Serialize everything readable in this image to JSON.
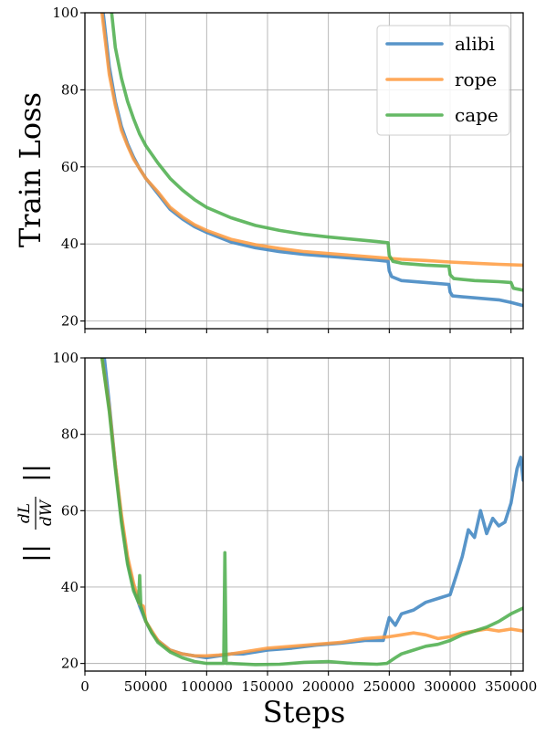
{
  "colors": {
    "alibi": "#3b83c0",
    "rope": "#ff9a3d",
    "cape": "#4aad4a"
  },
  "chart_data": [
    {
      "type": "line",
      "title": "",
      "xlabel": "",
      "ylabel": "Train Loss",
      "xlim": [
        0,
        360000
      ],
      "ylim": [
        18,
        100
      ],
      "xticks": [
        0,
        50000,
        100000,
        150000,
        200000,
        250000,
        300000,
        350000
      ],
      "yticks": [
        20,
        40,
        60,
        80,
        100
      ],
      "ytick_labels": [
        "20",
        "40",
        "60",
        "80",
        "100"
      ],
      "grid": true,
      "legend": "top-right",
      "series": [
        {
          "name": "alibi",
          "color": "#3b83c0",
          "x": [
            15000,
            20000,
            25000,
            30000,
            35000,
            40000,
            45000,
            50000,
            60000,
            70000,
            80000,
            90000,
            100000,
            120000,
            140000,
            160000,
            180000,
            200000,
            220000,
            240000,
            249000,
            250000,
            252000,
            260000,
            280000,
            299000,
            300000,
            302000,
            320000,
            340000,
            350000,
            360000
          ],
          "y": [
            100,
            86,
            77,
            70.5,
            66,
            62.5,
            59.5,
            57,
            53,
            49,
            46.5,
            44.5,
            43,
            40.5,
            39,
            38,
            37.3,
            36.8,
            36.3,
            35.8,
            35.5,
            33,
            31.5,
            30.5,
            30,
            29.5,
            27.5,
            26.5,
            26,
            25.5,
            24.8,
            24
          ]
        },
        {
          "name": "rope",
          "color": "#ff9a3d",
          "x": [
            14000,
            20000,
            25000,
            30000,
            35000,
            40000,
            45000,
            50000,
            60000,
            70000,
            80000,
            90000,
            100000,
            120000,
            140000,
            160000,
            180000,
            200000,
            220000,
            240000,
            260000,
            280000,
            300000,
            320000,
            340000,
            360000
          ],
          "y": [
            100,
            84,
            76,
            69.5,
            65.5,
            62,
            59.5,
            57,
            53.5,
            49.5,
            47,
            45,
            43.5,
            41.2,
            39.8,
            38.8,
            38,
            37.5,
            37,
            36.5,
            36,
            35.7,
            35.3,
            35,
            34.7,
            34.5
          ]
        },
        {
          "name": "cape",
          "color": "#4aad4a",
          "x": [
            22000,
            25000,
            30000,
            35000,
            40000,
            45000,
            50000,
            60000,
            70000,
            80000,
            90000,
            100000,
            120000,
            140000,
            160000,
            180000,
            200000,
            220000,
            240000,
            249000,
            250000,
            253000,
            260000,
            280000,
            299000,
            300000,
            303000,
            320000,
            340000,
            350000,
            352000,
            360000
          ],
          "y": [
            100,
            91,
            83,
            77,
            72.5,
            68.5,
            65.5,
            61,
            57,
            54,
            51.5,
            49.5,
            46.8,
            44.8,
            43.5,
            42.5,
            41.8,
            41.2,
            40.6,
            40.3,
            37,
            35.5,
            35,
            34.5,
            34.2,
            32,
            31,
            30.5,
            30.2,
            30,
            28.5,
            28
          ]
        }
      ]
    },
    {
      "type": "line",
      "title": "",
      "xlabel": "Steps",
      "ylabel": "||dL/dW||",
      "xlim": [
        0,
        360000
      ],
      "ylim": [
        18,
        100
      ],
      "xticks": [
        0,
        50000,
        100000,
        150000,
        200000,
        250000,
        300000,
        350000
      ],
      "xtick_labels": [
        "0",
        "50000",
        "100000",
        "150000",
        "200000",
        "250000",
        "300000",
        "350000"
      ],
      "yticks": [
        20,
        40,
        60,
        80,
        100
      ],
      "ytick_labels": [
        "20",
        "40",
        "60",
        "80",
        "100"
      ],
      "grid": true,
      "series": [
        {
          "name": "alibi",
          "color": "#3b83c0",
          "x": [
            16000,
            20000,
            25000,
            30000,
            35000,
            40000,
            45000,
            50000,
            55000,
            60000,
            70000,
            80000,
            90000,
            100000,
            110000,
            120000,
            130000,
            140000,
            150000,
            170000,
            190000,
            210000,
            230000,
            245000,
            250000,
            255000,
            260000,
            270000,
            280000,
            290000,
            300000,
            305000,
            310000,
            315000,
            320000,
            325000,
            330000,
            335000,
            340000,
            345000,
            350000,
            355000,
            358000,
            360000
          ],
          "y": [
            100,
            88,
            72,
            58,
            47,
            40,
            35,
            31,
            28,
            26,
            23.5,
            22.5,
            22,
            21.5,
            22,
            22.5,
            22.5,
            23,
            23.5,
            24,
            24.8,
            25.3,
            26,
            26,
            32,
            30,
            33,
            34,
            36,
            37,
            38,
            43,
            48,
            55,
            53,
            60,
            54,
            58,
            56,
            57,
            62,
            71,
            74,
            68
          ]
        },
        {
          "name": "rope",
          "color": "#ff9a3d",
          "x": [
            14000,
            20000,
            25000,
            30000,
            35000,
            40000,
            45000,
            48000,
            50000,
            55000,
            60000,
            70000,
            80000,
            90000,
            100000,
            110000,
            120000,
            130000,
            140000,
            150000,
            170000,
            190000,
            210000,
            230000,
            250000,
            260000,
            270000,
            280000,
            290000,
            300000,
            310000,
            320000,
            330000,
            340000,
            350000,
            360000
          ],
          "y": [
            100,
            87,
            72,
            59,
            48,
            41,
            35.5,
            35,
            31,
            28.5,
            26,
            23.5,
            22.5,
            22,
            22,
            22.2,
            22.5,
            23,
            23.5,
            24,
            24.5,
            25,
            25.5,
            26.5,
            27,
            27.5,
            28,
            27.5,
            26.5,
            27,
            28,
            28.5,
            29,
            28.5,
            29,
            28.5
          ]
        },
        {
          "name": "cape",
          "color": "#4aad4a",
          "x": [
            14000,
            20000,
            25000,
            30000,
            35000,
            40000,
            44000,
            45000,
            46000,
            50000,
            55000,
            60000,
            70000,
            80000,
            90000,
            100000,
            110000,
            114000,
            115000,
            116000,
            117000,
            120000,
            140000,
            160000,
            180000,
            200000,
            220000,
            240000,
            248000,
            255000,
            260000,
            270000,
            280000,
            290000,
            300000,
            310000,
            320000,
            330000,
            340000,
            350000,
            360000
          ],
          "y": [
            100,
            86,
            71,
            57,
            46,
            39,
            36,
            43,
            35,
            31,
            28,
            25.5,
            23,
            21.5,
            20.5,
            20,
            20,
            20,
            49,
            20,
            20,
            20,
            19.7,
            19.8,
            20.3,
            20.5,
            20,
            19.8,
            20,
            21.5,
            22.5,
            23.5,
            24.5,
            25,
            26,
            27.5,
            28.5,
            29.5,
            31,
            33,
            34.5
          ]
        }
      ]
    }
  ]
}
